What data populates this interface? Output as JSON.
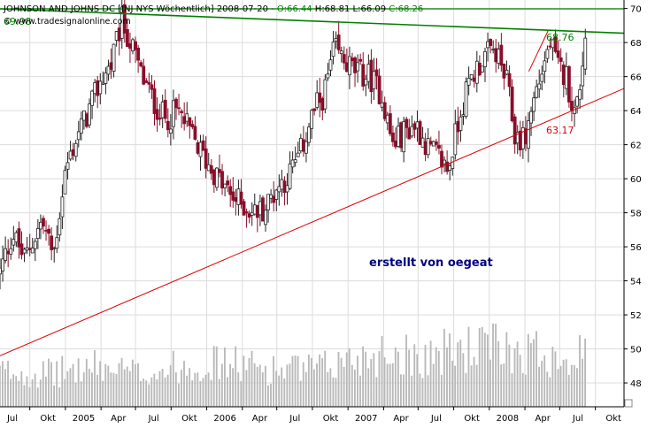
{
  "header": {
    "title": "JOHNSON AND JOHNS DC [JNJ NYS  Wöchentlich] 2008-07-20 - ",
    "open": "O:66.44",
    "high": "H:68.81",
    "low": "L:66.09",
    "close": "C:68.26",
    "site": "© www.tradesignalonline.com",
    "colors": {
      "open": "#008000",
      "close": "#008000",
      "text": "#000000"
    }
  },
  "chart_data": {
    "type": "candlestick",
    "title": "JOHNSON AND JOHNS DC [JNJ NYS  Wöchentlich]",
    "ylim": [
      46.6,
      70.5
    ],
    "yticks": [
      "48",
      "50",
      "52",
      "54",
      "56",
      "58",
      "60",
      "62",
      "64",
      "66",
      "68",
      "70"
    ],
    "xticks": [
      "Jul",
      "Okt",
      "2005",
      "Apr",
      "Jul",
      "Okt",
      "2006",
      "Apr",
      "Jul",
      "Okt",
      "2007",
      "Apr",
      "Jul",
      "Okt",
      "2008",
      "Apr",
      "Jul",
      "Okt"
    ],
    "grid": true,
    "price_anchors": [
      [
        "2004-05-30",
        54.5
      ],
      [
        "2004-07-01",
        56.8
      ],
      [
        "2004-08-01",
        55.3
      ],
      [
        "2004-09-15",
        57.5
      ],
      [
        "2004-10-15",
        55.5
      ],
      [
        "2004-11-15",
        60.5
      ],
      [
        "2004-12-15",
        62.5
      ],
      [
        "2005-01-15",
        64.0
      ],
      [
        "2005-02-15",
        65.8
      ],
      [
        "2005-03-15",
        66.8
      ],
      [
        "2005-04-10",
        69.3
      ],
      [
        "2005-05-01",
        68.0
      ],
      [
        "2005-06-01",
        66.0
      ],
      [
        "2005-07-01",
        64.5
      ],
      [
        "2005-08-01",
        63.5
      ],
      [
        "2005-09-01",
        64.0
      ],
      [
        "2005-10-01",
        62.8
      ],
      [
        "2005-11-01",
        61.5
      ],
      [
        "2005-12-15",
        60.0
      ],
      [
        "2006-01-15",
        59.0
      ],
      [
        "2006-02-15",
        58.5
      ],
      [
        "2006-03-15",
        58.0
      ],
      [
        "2006-04-15",
        58.3
      ],
      [
        "2006-05-15",
        59.5
      ],
      [
        "2006-06-15",
        60.2
      ],
      [
        "2006-07-15",
        61.5
      ],
      [
        "2006-08-15",
        63.8
      ],
      [
        "2006-09-15",
        65.0
      ],
      [
        "2006-10-10",
        67.6
      ],
      [
        "2006-11-10",
        66.8
      ],
      [
        "2006-12-10",
        66.2
      ],
      [
        "2007-01-10",
        66.0
      ],
      [
        "2007-02-10",
        65.0
      ],
      [
        "2007-03-10",
        62.0
      ],
      [
        "2007-04-10",
        62.8
      ],
      [
        "2007-05-10",
        63.2
      ],
      [
        "2007-06-10",
        61.8
      ],
      [
        "2007-07-10",
        61.2
      ],
      [
        "2007-08-01",
        60.5
      ],
      [
        "2007-09-01",
        64.0
      ],
      [
        "2007-10-01",
        66.0
      ],
      [
        "2007-11-01",
        67.2
      ],
      [
        "2007-12-01",
        67.5
      ],
      [
        "2008-01-01",
        65.5
      ],
      [
        "2008-01-20",
        62.5
      ],
      [
        "2008-02-15",
        62.3
      ],
      [
        "2008-03-10",
        64.8
      ],
      [
        "2008-04-01",
        66.5
      ],
      [
        "2008-04-20",
        68.0
      ],
      [
        "2008-05-10",
        66.5
      ],
      [
        "2008-06-01",
        66.0
      ],
      [
        "2008-06-25",
        63.6
      ],
      [
        "2008-07-20",
        68.26
      ]
    ],
    "volume": {
      "ylim": [
        0,
        100
      ],
      "anchors": [
        [
          "2004-05-30",
          32
        ],
        [
          "2004-10-01",
          30
        ],
        [
          "2005-02-01",
          36
        ],
        [
          "2005-06-01",
          30
        ],
        [
          "2005-10-01",
          38
        ],
        [
          "2006-01-01",
          40
        ],
        [
          "2006-05-01",
          34
        ],
        [
          "2006-09-01",
          34
        ],
        [
          "2006-12-01",
          44
        ],
        [
          "2007-03-01",
          50
        ],
        [
          "2007-06-01",
          46
        ],
        [
          "2007-09-01",
          52
        ],
        [
          "2007-12-01",
          54
        ],
        [
          "2008-03-01",
          50
        ],
        [
          "2008-07-20",
          46
        ]
      ]
    },
    "trendlines": [
      {
        "role": "resistance",
        "color": "#008000",
        "points": [
          [
            "2004-05-30",
            69.98
          ],
          [
            "2008-10-28",
            68.55
          ]
        ]
      },
      {
        "role": "support",
        "color": "#dd0000",
        "points": [
          [
            "2004-05-30",
            49.6
          ],
          [
            "2008-10-28",
            65.3
          ]
        ]
      },
      {
        "role": "channel",
        "color": "#dd0000",
        "points": [
          [
            "2008-02-25",
            66.3
          ],
          [
            "2008-04-15",
            68.7
          ]
        ]
      }
    ],
    "hline": {
      "value": 69.98,
      "color": "#008000"
    },
    "labels": {
      "high_value": "69.98",
      "resistance_value": "68.76",
      "support_value": "63.17",
      "note": "erstellt von oegeat"
    },
    "colors": {
      "up": "#202020",
      "down": "#8a0e2a",
      "volume": "#b8b8b8",
      "grid": "#dcdcdc",
      "note": "#000080",
      "high_value": "#008000",
      "resistance_value": "#008000",
      "support_value": "#dd0000"
    }
  }
}
